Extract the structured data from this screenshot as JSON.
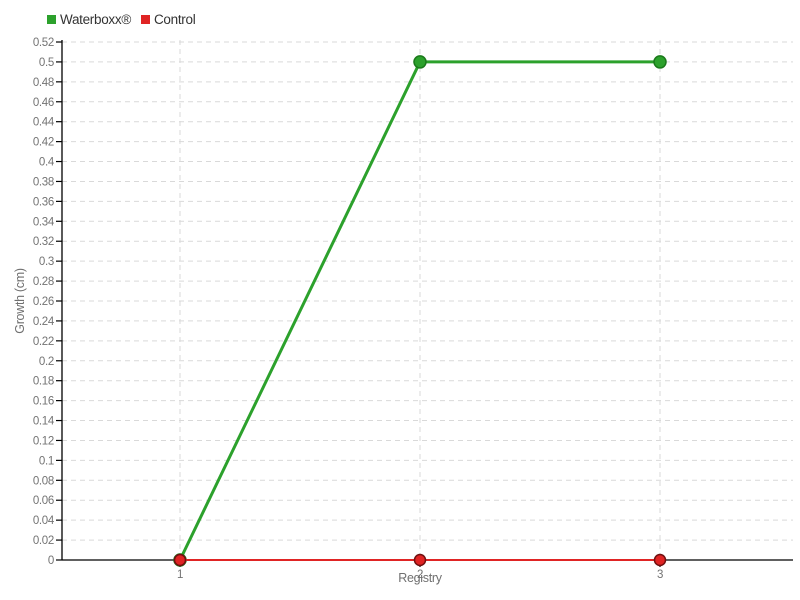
{
  "legend": {
    "items": [
      {
        "label": "Waterboxx®",
        "color": "#2ca12c"
      },
      {
        "label": "Control",
        "color": "#e02424"
      }
    ]
  },
  "chart_data": {
    "type": "line",
    "title": "",
    "xlabel": "Registry",
    "ylabel": "Growth (cm)",
    "x": [
      1,
      2,
      3
    ],
    "xticks": [
      "1",
      "2",
      "3"
    ],
    "series": [
      {
        "name": "Waterboxx®",
        "color": "#2ca12c",
        "marker_stroke": "#1b7a1b",
        "line_width": 3,
        "marker_radius": 6,
        "values": [
          0,
          0.5,
          0.5
        ]
      },
      {
        "name": "Control",
        "color": "#e02424",
        "marker_stroke": "#701010",
        "line_width": 2,
        "marker_radius": 5.5,
        "values": [
          0,
          0,
          0
        ]
      }
    ],
    "ylim": [
      0,
      0.52
    ],
    "ytick_step": 0.02,
    "grid": "dashed",
    "grid_color": "#d9d9d9",
    "axis_color": "#000000",
    "tick_label_color": "#737373",
    "legend_position": "top-left"
  }
}
